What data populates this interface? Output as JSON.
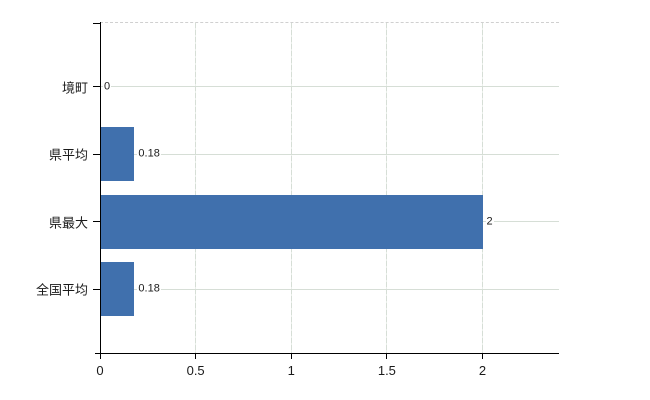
{
  "chart_data": {
    "type": "bar",
    "orientation": "horizontal",
    "title": "",
    "xlabel": "",
    "ylabel": "",
    "categories": [
      "境町",
      "県平均",
      "県最大",
      "全国平均"
    ],
    "values": [
      0,
      0.18,
      2,
      0.18
    ],
    "value_labels": [
      "0",
      "0.18",
      "2",
      "0.18"
    ],
    "x_ticks": [
      0,
      0.5,
      1,
      1.5,
      2
    ],
    "x_tick_labels": [
      "0",
      "0.5",
      "1",
      "1.5",
      "2"
    ],
    "xlim": [
      0,
      2.4
    ],
    "grid": true,
    "legend_position": "none"
  },
  "colors": {
    "bar": "#4070ad",
    "grid": "#d6ded6",
    "axis": "#000000",
    "text": "#1a1a1a",
    "background": "#ffffff",
    "plot_top_border": "#d0d0d0"
  }
}
